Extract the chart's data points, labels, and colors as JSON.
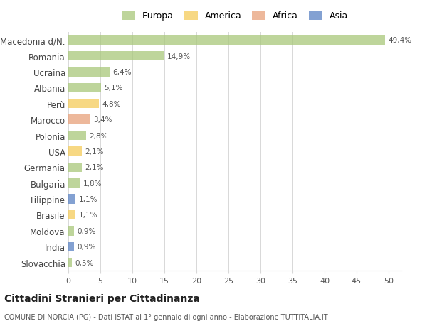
{
  "countries": [
    "Macedonia d/N.",
    "Romania",
    "Ucraina",
    "Albania",
    "Perù",
    "Marocco",
    "Polonia",
    "USA",
    "Germania",
    "Bulgaria",
    "Filippine",
    "Brasile",
    "Moldova",
    "India",
    "Slovacchia"
  ],
  "values": [
    49.4,
    14.9,
    6.4,
    5.1,
    4.8,
    3.4,
    2.8,
    2.1,
    2.1,
    1.8,
    1.1,
    1.1,
    0.9,
    0.9,
    0.5
  ],
  "labels": [
    "49,4%",
    "14,9%",
    "6,4%",
    "5,1%",
    "4,8%",
    "3,4%",
    "2,8%",
    "2,1%",
    "2,1%",
    "1,8%",
    "1,1%",
    "1,1%",
    "0,9%",
    "0,9%",
    "0,5%"
  ],
  "continents": [
    "Europa",
    "Europa",
    "Europa",
    "Europa",
    "America",
    "Africa",
    "Europa",
    "America",
    "Europa",
    "Europa",
    "Asia",
    "America",
    "Europa",
    "Asia",
    "Europa"
  ],
  "continent_colors": {
    "Europa": "#a8c87a",
    "America": "#f5cc5a",
    "Africa": "#e8a07a",
    "Asia": "#5a82c4"
  },
  "legend_order": [
    "Europa",
    "America",
    "Africa",
    "Asia"
  ],
  "xlim": [
    0,
    52
  ],
  "xticks": [
    0,
    5,
    10,
    15,
    20,
    25,
    30,
    35,
    40,
    45,
    50
  ],
  "title": "Cittadini Stranieri per Cittadinanza",
  "subtitle": "COMUNE DI NORCIA (PG) - Dati ISTAT al 1° gennaio di ogni anno - Elaborazione TUTTITALIA.IT",
  "background_color": "#ffffff",
  "bar_alpha": 0.75,
  "grid_color": "#d8d8d8"
}
